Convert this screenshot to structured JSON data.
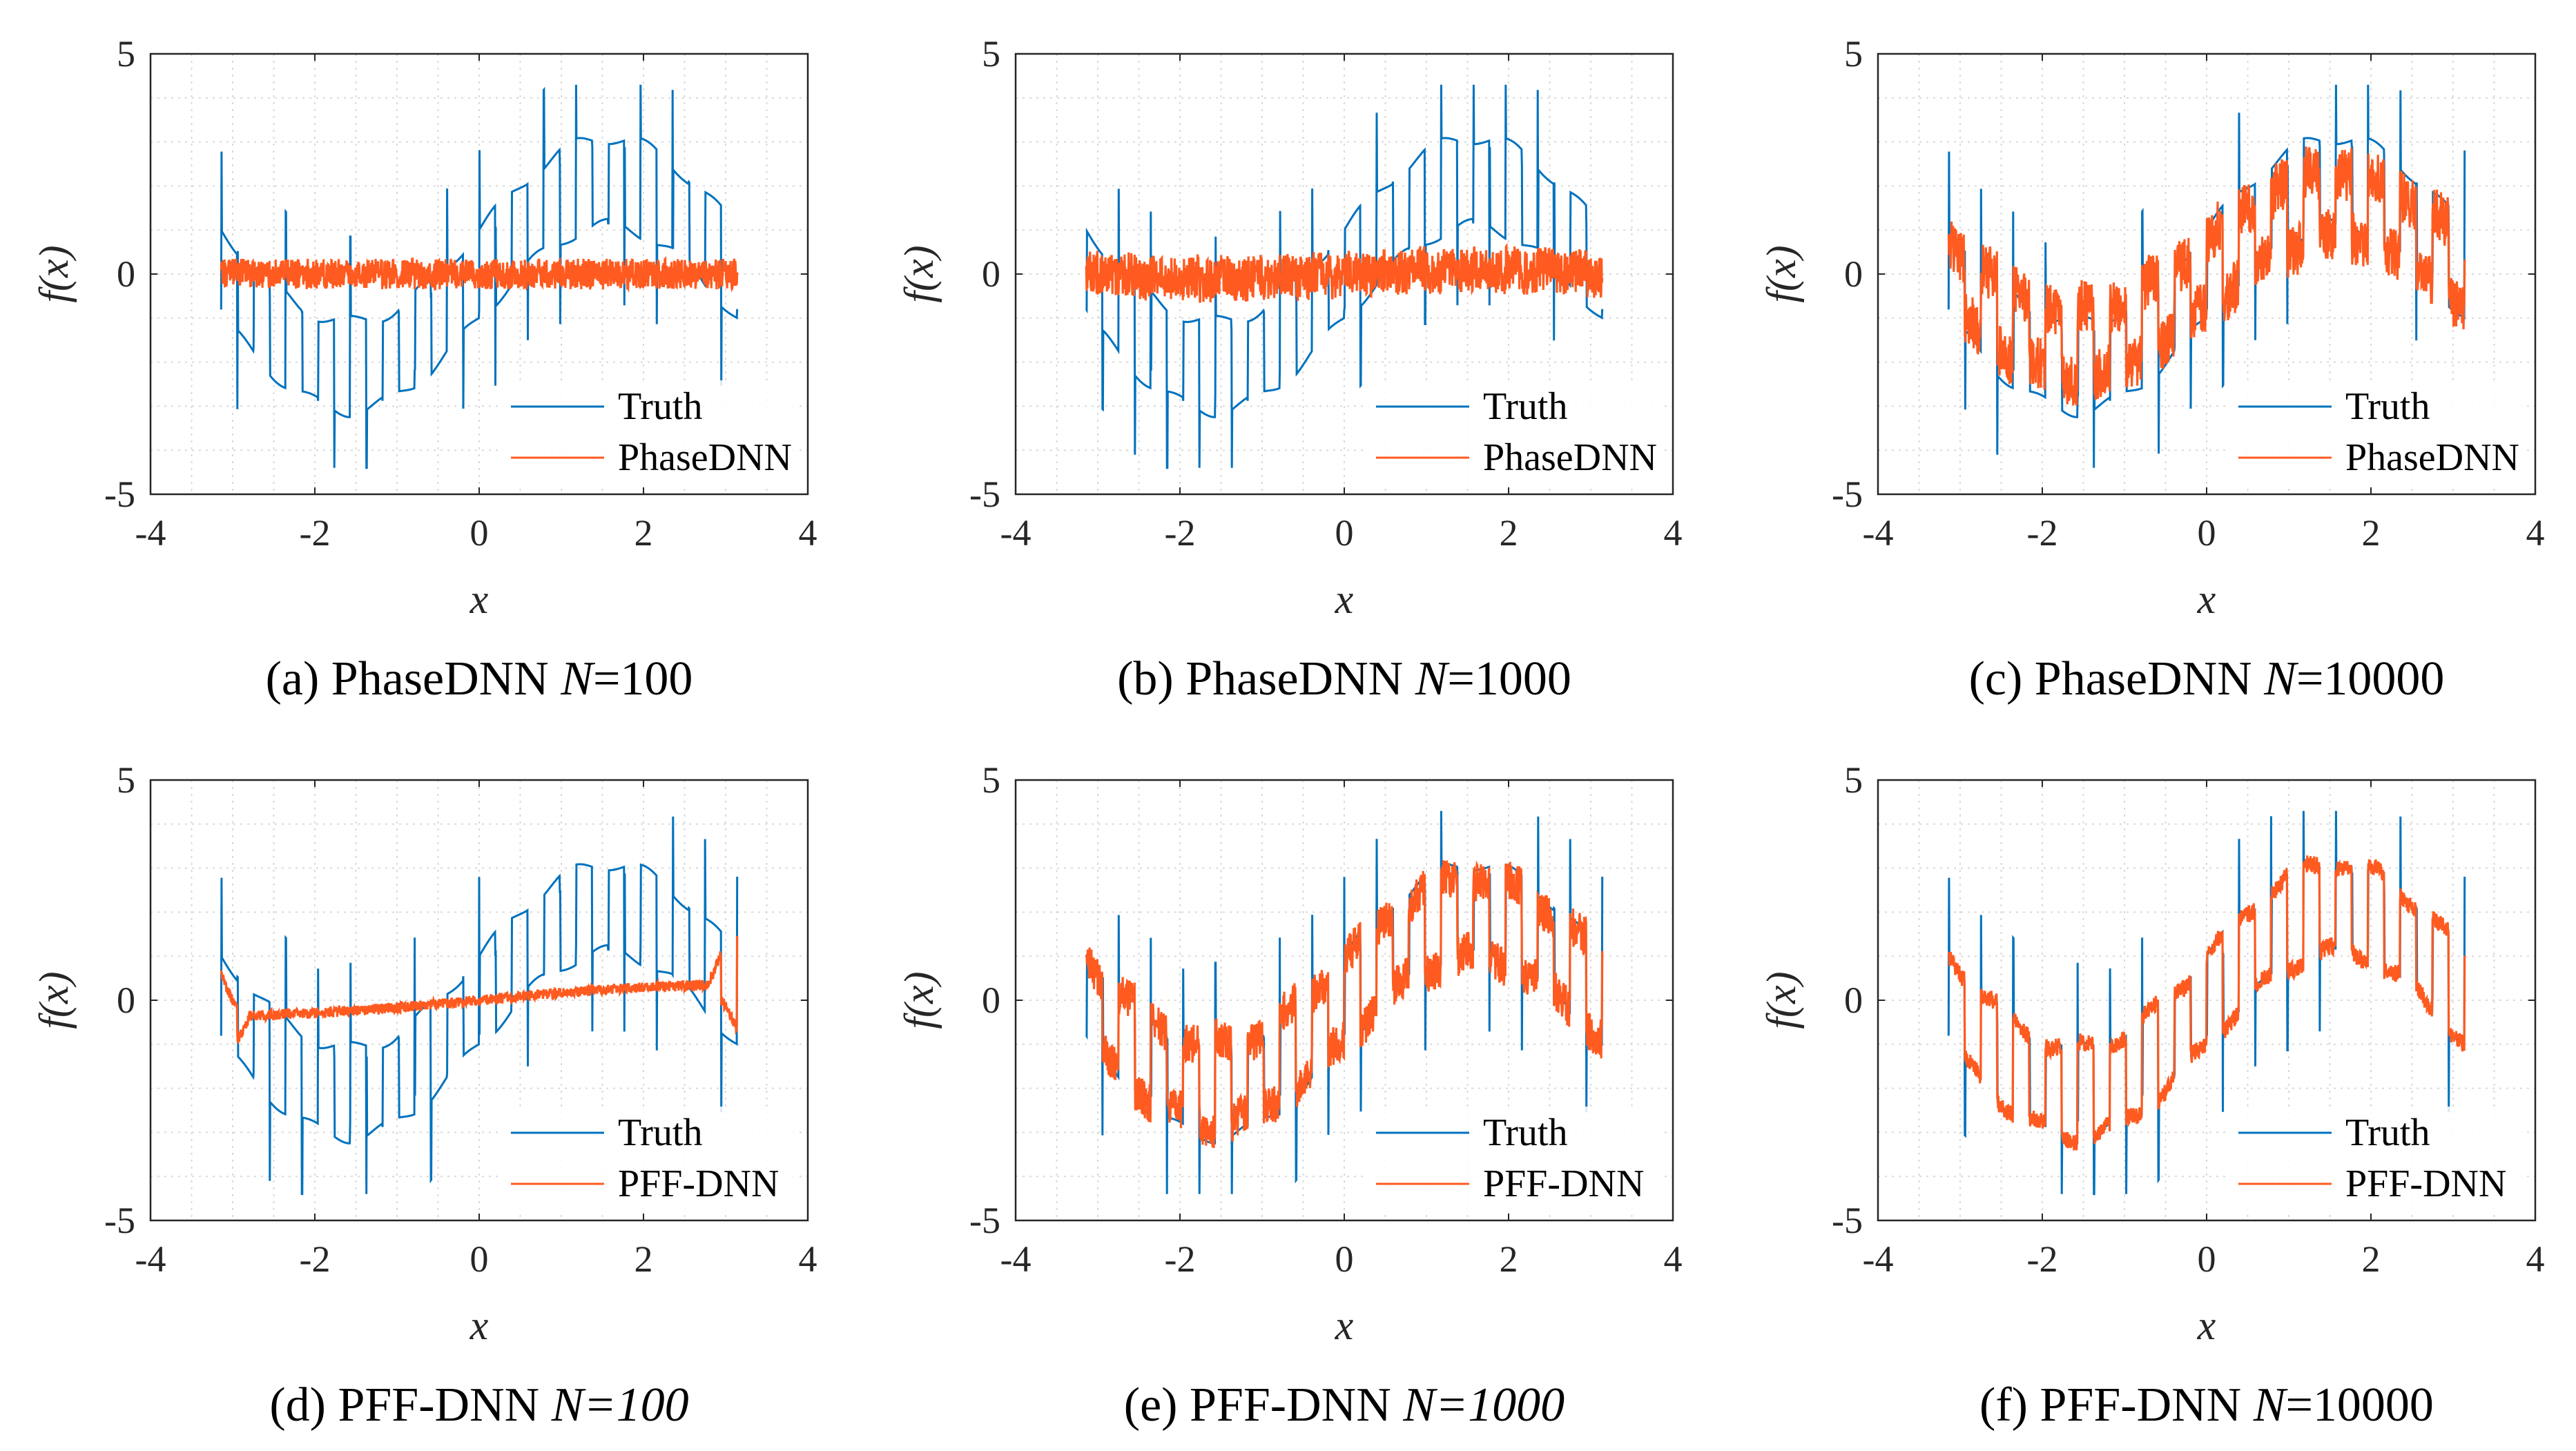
{
  "figure": {
    "colors": {
      "truth": "#0072BD",
      "pred": "#FF5A1F",
      "grid": "#d9d9d9",
      "axis": "#262626"
    }
  },
  "chart_data": [
    {
      "id": "a",
      "type": "line",
      "xlabel": "x",
      "ylabel": "f(x)",
      "xlim": [
        -4,
        4
      ],
      "ylim": [
        -5,
        5
      ],
      "xticks": [
        "-4",
        "-2",
        "0",
        "2",
        "4"
      ],
      "yticks": [
        "-5",
        "0",
        "5"
      ],
      "grid": true,
      "legend_position": "bottom-right",
      "caption": {
        "prefix": "(a) PhaseDNN ",
        "var": "N",
        "suffix": "=100"
      },
      "series": [
        {
          "name": "Truth",
          "role": "truth",
          "x_range": [
            -3.14,
            3.14
          ],
          "stripes": 32,
          "jump": 2.0,
          "amplitude": 2.1,
          "baseline": 0.0
        },
        {
          "name": "PhaseDNN",
          "role": "pred",
          "x_range": [
            -3.14,
            3.14
          ],
          "fit": 0.0,
          "noise": 0.35,
          "baseline": 0.0
        }
      ]
    },
    {
      "id": "b",
      "type": "line",
      "xlabel": "x",
      "ylabel": "f(x)",
      "xlim": [
        -4,
        4
      ],
      "ylim": [
        -5,
        5
      ],
      "xticks": [
        "-4",
        "-2",
        "0",
        "2",
        "4"
      ],
      "yticks": [
        "-5",
        "0",
        "5"
      ],
      "grid": true,
      "legend_position": "bottom-right",
      "caption": {
        "prefix": "(b) PhaseDNN ",
        "var": "N",
        "suffix": "=1000"
      },
      "series": [
        {
          "name": "Truth",
          "role": "truth",
          "x_range": [
            -3.14,
            3.14
          ],
          "stripes": 32,
          "jump": 2.0,
          "amplitude": 2.1,
          "baseline": 0.0
        },
        {
          "name": "PhaseDNN",
          "role": "pred",
          "x_range": [
            -3.14,
            3.14
          ],
          "fit": 0.05,
          "noise": 0.5,
          "baseline": 0.0
        }
      ]
    },
    {
      "id": "c",
      "type": "line",
      "xlabel": "x",
      "ylabel": "f(x)",
      "xlim": [
        -4,
        4
      ],
      "ylim": [
        -5,
        5
      ],
      "xticks": [
        "-4",
        "-2",
        "0",
        "2",
        "4"
      ],
      "yticks": [
        "-5",
        "0",
        "5"
      ],
      "grid": true,
      "legend_position": "bottom-right",
      "caption": {
        "prefix": "(c) PhaseDNN ",
        "var": "N",
        "suffix": "=10000"
      },
      "series": [
        {
          "name": "Truth",
          "role": "truth",
          "x_range": [
            -3.14,
            3.14
          ],
          "stripes": 32,
          "jump": 2.0,
          "amplitude": 2.1,
          "baseline": 0.0
        },
        {
          "name": "PhaseDNN",
          "role": "pred",
          "x_range": [
            -3.14,
            3.14
          ],
          "fit": 0.75,
          "noise": 0.6,
          "baseline": 0.0
        }
      ]
    },
    {
      "id": "d",
      "type": "line",
      "xlabel": "x",
      "ylabel": "f(x)",
      "xlim": [
        -4,
        4
      ],
      "ylim": [
        -5,
        5
      ],
      "xticks": [
        "-4",
        "-2",
        "0",
        "2",
        "4"
      ],
      "yticks": [
        "-5",
        "0",
        "5"
      ],
      "grid": true,
      "legend_position": "bottom-right",
      "caption": {
        "prefix": "(d) PFF-DNN ",
        "var": "N=100",
        "suffix": ""
      },
      "series": [
        {
          "name": "Truth",
          "role": "truth",
          "x_range": [
            -3.14,
            3.14
          ],
          "stripes": 32,
          "jump": 2.0,
          "amplitude": 2.1,
          "baseline": 0.0
        },
        {
          "name": "PFF-DNN",
          "role": "pred",
          "x_range": [
            -3.14,
            3.14
          ],
          "fit": 0.0,
          "noise": 0.12,
          "baseline": 0.0,
          "edge_fit": true
        }
      ]
    },
    {
      "id": "e",
      "type": "line",
      "xlabel": "x",
      "ylabel": "f(x)",
      "xlim": [
        -4,
        4
      ],
      "ylim": [
        -5,
        5
      ],
      "xticks": [
        "-4",
        "-2",
        "0",
        "2",
        "4"
      ],
      "yticks": [
        "-5",
        "0",
        "5"
      ],
      "grid": true,
      "legend_position": "bottom-right",
      "caption": {
        "prefix": "(e) PFF-DNN ",
        "var": "N=1000",
        "suffix": ""
      },
      "series": [
        {
          "name": "Truth",
          "role": "truth",
          "x_range": [
            -3.14,
            3.14
          ],
          "stripes": 32,
          "jump": 2.0,
          "amplitude": 2.1,
          "baseline": 0.0
        },
        {
          "name": "PFF-DNN",
          "role": "pred",
          "x_range": [
            -3.14,
            3.14
          ],
          "fit": 0.9,
          "noise": 0.45,
          "baseline": 0.0
        }
      ]
    },
    {
      "id": "f",
      "type": "line",
      "xlabel": "x",
      "ylabel": "f(x)",
      "xlim": [
        -4,
        4
      ],
      "ylim": [
        -5,
        5
      ],
      "xticks": [
        "-4",
        "-2",
        "0",
        "2",
        "4"
      ],
      "yticks": [
        "-5",
        "0",
        "5"
      ],
      "grid": true,
      "legend_position": "bottom-right",
      "caption": {
        "prefix": "(f) PFF-DNN ",
        "var": "N",
        "suffix": "=10000"
      },
      "series": [
        {
          "name": "Truth",
          "role": "truth",
          "x_range": [
            -3.14,
            3.14
          ],
          "stripes": 32,
          "jump": 2.0,
          "amplitude": 2.1,
          "baseline": 0.0
        },
        {
          "name": "PFF-DNN",
          "role": "pred",
          "x_range": [
            -3.14,
            3.14
          ],
          "fit": 1.0,
          "noise": 0.2,
          "baseline": 0.0
        }
      ]
    }
  ]
}
